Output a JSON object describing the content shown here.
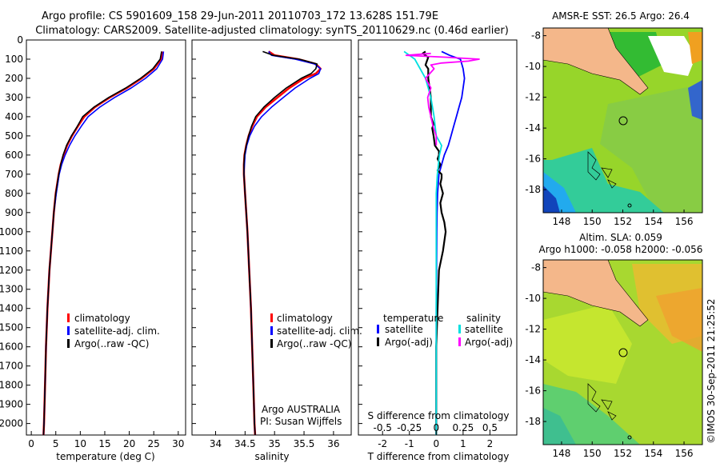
{
  "header": {
    "line1": "Argo profile: CS 5901609_158 29-Jun-2011 20110703_172 13.628S 151.79E",
    "line2": "Climatology: CARS2009. Satellite-adjusted climatology: synTS_20110629.nc (0.46d earlier)"
  },
  "colors": {
    "clim": "#ff0000",
    "sat": "#0000ff",
    "argo": "#000000",
    "sat_s": "#00e0e0",
    "argo_s": "#ff00ff",
    "land": "#f4b78a"
  },
  "depth_ticks": [
    "0",
    "100",
    "200",
    "300",
    "400",
    "500",
    "600",
    "700",
    "800",
    "900",
    "1000",
    "1100",
    "1200",
    "1300",
    "1400",
    "1500",
    "1600",
    "1700",
    "1800",
    "1900",
    "2000"
  ],
  "chart_data": [
    {
      "type": "line",
      "title": "",
      "xlabel": "temperature (deg C)",
      "ylabel": "",
      "xlim": [
        -1,
        31.5
      ],
      "ylim": [
        2060,
        0
      ],
      "x_ticks": [
        "0",
        "5",
        "10",
        "15",
        "20",
        "25",
        "30"
      ],
      "legend": [
        "climatology",
        "satellite-adj. clim.",
        "Argo(..raw -QC)"
      ],
      "series": [
        {
          "name": "climatology",
          "depth": [
            60,
            100,
            150,
            200,
            250,
            300,
            350,
            400,
            450,
            500,
            550,
            600,
            650,
            700,
            800,
            900,
            1000,
            1200,
            1400,
            1600,
            1800,
            2000,
            2060
          ],
          "values": [
            26.7,
            26.5,
            25.0,
            22.5,
            19.5,
            16.0,
            13.0,
            10.8,
            9.5,
            8.3,
            7.3,
            6.6,
            6.0,
            5.6,
            5.0,
            4.6,
            4.3,
            3.7,
            3.3,
            3.0,
            2.8,
            2.6,
            2.5
          ]
        },
        {
          "name": "satellite-adj. clim.",
          "depth": [
            60,
            100,
            150,
            200,
            250,
            300,
            350,
            400,
            450,
            500,
            550,
            600,
            650,
            700,
            800,
            900,
            1000,
            1200,
            1400,
            1600,
            1800,
            2000,
            2060
          ],
          "values": [
            27.0,
            26.8,
            25.6,
            23.3,
            20.4,
            17.0,
            14.0,
            11.6,
            10.2,
            8.9,
            7.8,
            6.9,
            6.2,
            5.7,
            5.1,
            4.6,
            4.3,
            3.7,
            3.3,
            3.0,
            2.8,
            2.6,
            2.5
          ]
        },
        {
          "name": "Argo(..raw -QC)",
          "depth": [
            60,
            100,
            150,
            200,
            250,
            300,
            350,
            400,
            450,
            500,
            550,
            600,
            650,
            700,
            800,
            900,
            1000,
            1200,
            1400,
            1600,
            1800,
            2000,
            2060
          ],
          "values": [
            26.6,
            26.3,
            24.8,
            22.3,
            19.3,
            15.8,
            12.8,
            10.5,
            9.4,
            8.2,
            7.2,
            6.5,
            6.0,
            5.6,
            5.0,
            4.6,
            4.3,
            3.7,
            3.3,
            3.0,
            2.8,
            2.6,
            2.5
          ]
        }
      ]
    },
    {
      "type": "line",
      "title": "",
      "xlabel": "salinity",
      "ylabel": "",
      "xlim": [
        33.6,
        36.3
      ],
      "ylim": [
        2060,
        0
      ],
      "x_ticks": [
        "34",
        "34.5",
        "35",
        "35.5",
        "36"
      ],
      "legend": [
        "climatology",
        "satellite-adj. clim.",
        "Argo(..raw -QC)"
      ],
      "annotation": [
        "Argo AUSTRALIA",
        "PI: Susan Wijffels"
      ],
      "series": [
        {
          "name": "climatology",
          "depth": [
            60,
            80,
            100,
            125,
            150,
            175,
            200,
            250,
            300,
            350,
            400,
            450,
            500,
            550,
            600,
            650,
            700,
            800,
            900,
            1000,
            1200,
            1400,
            1600,
            1800,
            2000,
            2060
          ],
          "values": [
            34.9,
            35.0,
            35.4,
            35.7,
            35.78,
            35.7,
            35.5,
            35.25,
            35.05,
            34.85,
            34.7,
            34.62,
            34.56,
            34.52,
            34.49,
            34.48,
            34.48,
            34.5,
            34.52,
            34.54,
            34.57,
            34.6,
            34.62,
            34.64,
            34.66,
            34.67
          ]
        },
        {
          "name": "satellite-adj. clim.",
          "depth": [
            60,
            80,
            100,
            125,
            150,
            175,
            200,
            250,
            300,
            350,
            400,
            450,
            500,
            550,
            600,
            650,
            700,
            800,
            900,
            1000,
            1200,
            1400,
            1600,
            1800,
            2000,
            2060
          ],
          "values": [
            34.9,
            34.95,
            35.35,
            35.68,
            35.78,
            35.75,
            35.6,
            35.35,
            35.15,
            34.95,
            34.78,
            34.66,
            34.58,
            34.53,
            34.5,
            34.49,
            34.48,
            34.5,
            34.52,
            34.54,
            34.57,
            34.6,
            34.62,
            34.64,
            34.66,
            34.67
          ]
        },
        {
          "name": "Argo(..raw -QC)",
          "depth": [
            60,
            80,
            100,
            125,
            150,
            175,
            200,
            250,
            300,
            350,
            400,
            450,
            500,
            550,
            600,
            650,
            700,
            800,
            900,
            1000,
            1200,
            1400,
            1600,
            1800,
            2000,
            2060
          ],
          "values": [
            34.8,
            34.98,
            35.42,
            35.72,
            35.7,
            35.62,
            35.45,
            35.2,
            35.0,
            34.82,
            34.68,
            34.61,
            34.56,
            34.52,
            34.49,
            34.48,
            34.48,
            34.5,
            34.52,
            34.54,
            34.57,
            34.6,
            34.62,
            34.64,
            34.66,
            34.67
          ]
        }
      ]
    },
    {
      "type": "line",
      "title": "",
      "xlabel": "T difference from climatology",
      "xlabel_top": "S difference from climatology",
      "ylabel": "",
      "xlim": [
        -2.9,
        3.0
      ],
      "ylim": [
        2060,
        0
      ],
      "x_ticks": [
        "-2",
        "-1",
        "0",
        "1",
        "2"
      ],
      "x_ticks_salinity": [
        "-0.5",
        "-0.25",
        "0",
        "0.25",
        "0.5"
      ],
      "legend_titles": [
        "temperature",
        "salinity"
      ],
      "legend": [
        "satellite",
        "Argo(-adj)",
        "satellite",
        "Argo(-adj)"
      ],
      "series": [
        {
          "name": "T satellite",
          "depth": [
            60,
            80,
            100,
            150,
            200,
            250,
            300,
            350,
            400,
            450,
            500,
            550,
            600,
            650,
            700,
            800,
            900,
            1000,
            1200,
            1400,
            1600,
            1800,
            2000,
            2060
          ],
          "values": [
            0.2,
            0.5,
            0.9,
            1.0,
            1.05,
            1.0,
            0.95,
            0.85,
            0.75,
            0.65,
            0.55,
            0.45,
            0.3,
            0.2,
            0.1,
            0.05,
            0.03,
            0.02,
            0.01,
            0.0,
            0.0,
            0.0,
            0.0,
            0.0
          ]
        },
        {
          "name": "T Argo(-adj)",
          "depth": [
            60,
            70,
            90,
            110,
            130,
            150,
            180,
            200,
            300,
            400,
            440,
            460,
            500,
            550,
            580,
            600,
            620,
            650,
            680,
            700,
            720,
            750,
            800,
            850,
            900,
            950,
            1000,
            1050,
            1100,
            1200,
            1400,
            1600,
            1800,
            2000,
            2060
          ],
          "values": [
            -0.4,
            -0.5,
            -0.3,
            -0.35,
            -0.4,
            -0.3,
            -0.3,
            -0.3,
            -0.2,
            -0.2,
            -0.1,
            -0.15,
            -0.1,
            -0.05,
            0.1,
            0.1,
            0.05,
            0.15,
            0.05,
            0.2,
            0.2,
            0.15,
            0.25,
            0.15,
            0.2,
            0.3,
            0.35,
            0.3,
            0.25,
            0.1,
            0.05,
            0.0,
            0.0,
            0.0,
            0.0
          ]
        },
        {
          "name": "S satellite",
          "depth": [
            60,
            80,
            100,
            150,
            200,
            300,
            400,
            500,
            550,
            600,
            700,
            800,
            900,
            1000,
            1200,
            1400,
            1600,
            1800,
            2000,
            2060
          ],
          "values": [
            -0.3,
            -0.25,
            -0.2,
            -0.15,
            -0.1,
            -0.05,
            -0.02,
            0.0,
            0.05,
            0.03,
            0.01,
            0.0,
            0.0,
            0.0,
            0.0,
            0.0,
            0.0,
            0.0,
            0.0,
            0.0
          ]
        },
        {
          "name": "S Argo(-adj)",
          "depth": [
            70,
            80,
            90,
            100,
            110,
            120,
            130,
            150,
            200,
            250,
            300,
            350,
            400,
            450,
            500,
            550
          ],
          "values": [
            -0.05,
            -0.28,
            0.1,
            0.4,
            0.3,
            0.05,
            -0.05,
            -0.02,
            -0.1,
            -0.05,
            -0.08,
            -0.07,
            -0.05,
            -0.03,
            0.0,
            0.0
          ]
        }
      ]
    }
  ],
  "maps": [
    {
      "title": "AMSR-E SST: 26.5 Argo: 26.4",
      "x_ticks": [
        "148",
        "150",
        "152",
        "154",
        "156"
      ],
      "y_ticks": [
        "-8",
        "-10",
        "-12",
        "-14",
        "-16",
        "-18"
      ]
    },
    {
      "title_line1": "Altim. SLA: 0.059",
      "title_line2": "Argo h1000: -0.058 h2000: -0.056",
      "x_ticks": [
        "148",
        "150",
        "152",
        "154",
        "156"
      ],
      "y_ticks": [
        "-8",
        "-10",
        "-12",
        "-14",
        "-16",
        "-18"
      ]
    }
  ],
  "watermark": "©IMOS 30-Sep-2011 21:25:52"
}
